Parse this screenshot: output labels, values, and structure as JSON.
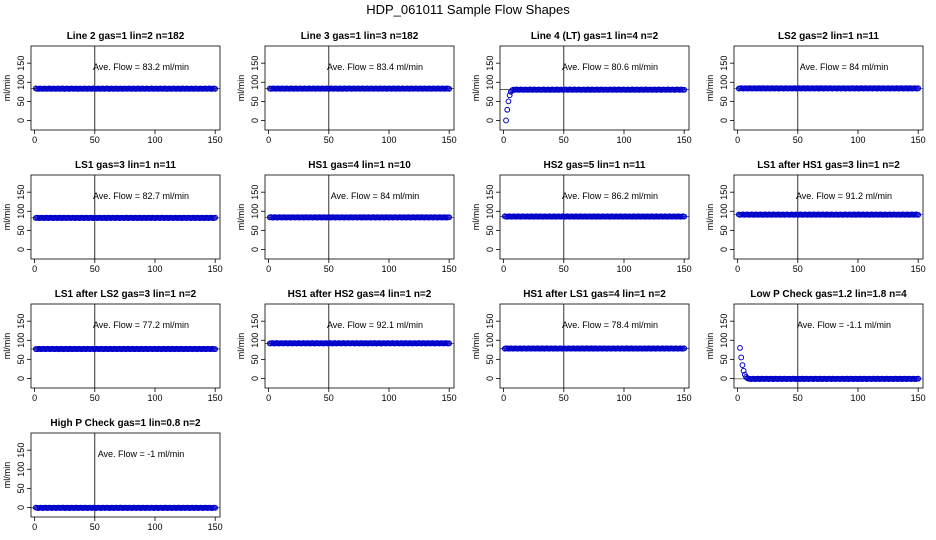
{
  "figure_title": "HDP_061011  Sample Flow Shapes",
  "colors": {
    "points": "#0000cc",
    "axes": "#000000",
    "background": "#ffffff"
  },
  "chart_data": [
    {
      "type": "scatter",
      "title": "Line 2 gas=1 lin=2 n=182",
      "ylabel": "ml/min",
      "annotation": "Ave. Flow =  83.2  ml/min",
      "xlim": [
        -3,
        154
      ],
      "ylim": [
        -25,
        195
      ],
      "xticks": [
        0,
        50,
        100,
        150
      ],
      "yticks": [
        0,
        50,
        100,
        150
      ],
      "hline": 83.2,
      "vline": 50,
      "shape": "flat",
      "level": 83.2
    },
    {
      "type": "scatter",
      "title": "Line 3 gas=1 lin=3 n=182",
      "ylabel": "ml/min",
      "annotation": "Ave. Flow =  83.4  ml/min",
      "xlim": [
        -3,
        154
      ],
      "ylim": [
        -25,
        195
      ],
      "xticks": [
        0,
        50,
        100,
        150
      ],
      "yticks": [
        0,
        50,
        100,
        150
      ],
      "hline": 83.4,
      "vline": 50,
      "shape": "flat",
      "level": 83.4
    },
    {
      "type": "scatter",
      "title": "Line 4 (LT) gas=1 lin=4 n=2",
      "ylabel": "ml/min",
      "annotation": "Ave. Flow =  80.6  ml/min",
      "xlim": [
        -3,
        154
      ],
      "ylim": [
        -25,
        195
      ],
      "xticks": [
        0,
        50,
        100,
        150
      ],
      "yticks": [
        0,
        50,
        100,
        150
      ],
      "hline": 80.6,
      "vline": 50,
      "shape": "rise",
      "level": 80.6,
      "start": [
        [
          2,
          0
        ],
        [
          3,
          28
        ],
        [
          4,
          50
        ],
        [
          5,
          66
        ],
        [
          6,
          75
        ],
        [
          7,
          79
        ]
      ]
    },
    {
      "type": "scatter",
      "title": "LS2 gas=2 lin=1 n=11",
      "ylabel": "ml/min",
      "annotation": "Ave. Flow =  84  ml/min",
      "xlim": [
        -3,
        154
      ],
      "ylim": [
        -25,
        195
      ],
      "xticks": [
        0,
        50,
        100,
        150
      ],
      "yticks": [
        0,
        50,
        100,
        150
      ],
      "hline": 84,
      "vline": 50,
      "shape": "flat",
      "level": 84
    },
    {
      "type": "scatter",
      "title": "LS1 gas=3 lin=1 n=11",
      "ylabel": "ml/min",
      "annotation": "Ave. Flow =  82.7  ml/min",
      "xlim": [
        -3,
        154
      ],
      "ylim": [
        -25,
        195
      ],
      "xticks": [
        0,
        50,
        100,
        150
      ],
      "yticks": [
        0,
        50,
        100,
        150
      ],
      "hline": 82.7,
      "vline": 50,
      "shape": "flat",
      "level": 82.7
    },
    {
      "type": "scatter",
      "title": "HS1 gas=4 lin=1 n=10",
      "ylabel": "ml/min",
      "annotation": "Ave. Flow =  84  ml/min",
      "xlim": [
        -3,
        154
      ],
      "ylim": [
        -25,
        195
      ],
      "xticks": [
        0,
        50,
        100,
        150
      ],
      "yticks": [
        0,
        50,
        100,
        150
      ],
      "hline": 84,
      "vline": 50,
      "shape": "flat",
      "level": 84
    },
    {
      "type": "scatter",
      "title": "HS2 gas=5 lin=1 n=11",
      "ylabel": "ml/min",
      "annotation": "Ave. Flow =  86.2  ml/min",
      "xlim": [
        -3,
        154
      ],
      "ylim": [
        -25,
        195
      ],
      "xticks": [
        0,
        50,
        100,
        150
      ],
      "yticks": [
        0,
        50,
        100,
        150
      ],
      "hline": 86.2,
      "vline": 50,
      "shape": "flat",
      "level": 86.2
    },
    {
      "type": "scatter",
      "title": "LS1 after HS1 gas=3 lin=1 n=2",
      "ylabel": "ml/min",
      "annotation": "Ave. Flow =  91.2  ml/min",
      "xlim": [
        -3,
        154
      ],
      "ylim": [
        -25,
        195
      ],
      "xticks": [
        0,
        50,
        100,
        150
      ],
      "yticks": [
        0,
        50,
        100,
        150
      ],
      "hline": 91.2,
      "vline": 50,
      "shape": "flat",
      "level": 91.2
    },
    {
      "type": "scatter",
      "title": "LS1 after LS2 gas=3 lin=1 n=2",
      "ylabel": "ml/min",
      "annotation": "Ave. Flow =  77.2  ml/min",
      "xlim": [
        -3,
        154
      ],
      "ylim": [
        -25,
        195
      ],
      "xticks": [
        0,
        50,
        100,
        150
      ],
      "yticks": [
        0,
        50,
        100,
        150
      ],
      "hline": 77.2,
      "vline": 50,
      "shape": "flat",
      "level": 77.2
    },
    {
      "type": "scatter",
      "title": "HS1 after HS2 gas=4 lin=1 n=2",
      "ylabel": "ml/min",
      "annotation": "Ave. Flow =  92.1  ml/min",
      "xlim": [
        -3,
        154
      ],
      "ylim": [
        -25,
        195
      ],
      "xticks": [
        0,
        50,
        100,
        150
      ],
      "yticks": [
        0,
        50,
        100,
        150
      ],
      "hline": 92.1,
      "vline": 50,
      "shape": "flat",
      "level": 92.1
    },
    {
      "type": "scatter",
      "title": "HS1 after LS1 gas=4 lin=1 n=2",
      "ylabel": "ml/min",
      "annotation": "Ave. Flow =  78.4  ml/min",
      "xlim": [
        -3,
        154
      ],
      "ylim": [
        -25,
        195
      ],
      "xticks": [
        0,
        50,
        100,
        150
      ],
      "yticks": [
        0,
        50,
        100,
        150
      ],
      "hline": 78.4,
      "vline": 50,
      "shape": "flat",
      "level": 78.4
    },
    {
      "type": "scatter",
      "title": "Low P Check gas=1.2 lin=1.8 n=4",
      "ylabel": "ml/min",
      "annotation": "Ave. Flow =  -1.1  ml/min",
      "xlim": [
        -3,
        154
      ],
      "ylim": [
        -25,
        195
      ],
      "xticks": [
        0,
        50,
        100,
        150
      ],
      "yticks": [
        0,
        50,
        100,
        150
      ],
      "hline": -1.1,
      "vline": 50,
      "shape": "decay",
      "level": -1.1,
      "start": [
        [
          2,
          80
        ],
        [
          3,
          55
        ],
        [
          4,
          35
        ],
        [
          5,
          20
        ],
        [
          6,
          10
        ],
        [
          7,
          4
        ],
        [
          8,
          1
        ]
      ]
    },
    {
      "type": "scatter",
      "title": "High P Check gas=1 lin=0.8 n=2",
      "ylabel": "ml/min",
      "annotation": "Ave. Flow =  -1  ml/min",
      "xlim": [
        -3,
        154
      ],
      "ylim": [
        -25,
        195
      ],
      "xticks": [
        0,
        50,
        100,
        150
      ],
      "yticks": [
        0,
        50,
        100,
        150
      ],
      "hline": -1,
      "vline": 50,
      "shape": "flat",
      "level": -1
    }
  ]
}
